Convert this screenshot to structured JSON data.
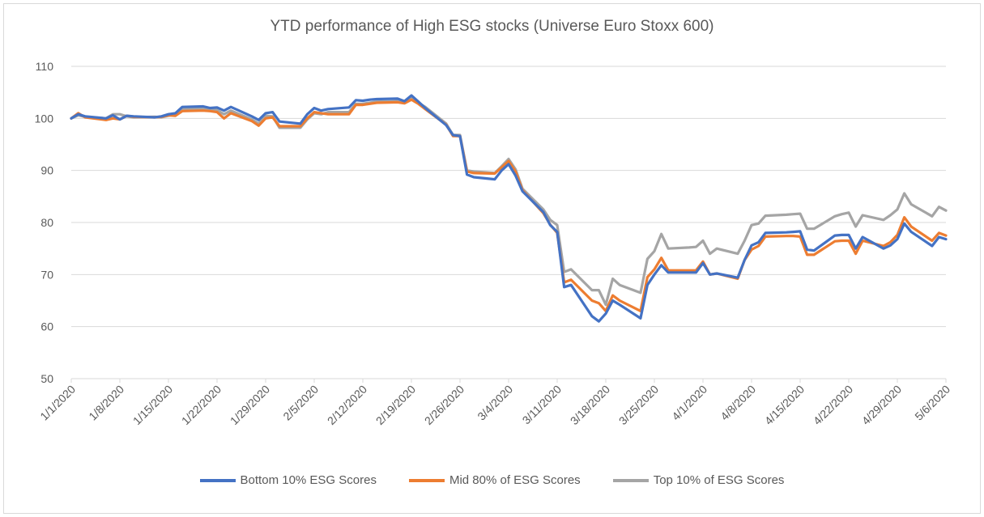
{
  "chart_data": {
    "type": "line",
    "title": "YTD performance of High ESG stocks (Universe Euro Stoxx 600)",
    "xlabel": "",
    "ylabel": "",
    "ylim": [
      50,
      110
    ],
    "yticks": [
      "50",
      "60",
      "70",
      "80",
      "90",
      "100",
      "110"
    ],
    "xticks": [
      "1/1/2020",
      "1/8/2020",
      "1/15/2020",
      "1/22/2020",
      "1/29/2020",
      "2/5/2020",
      "2/12/2020",
      "2/19/2020",
      "2/26/2020",
      "3/4/2020",
      "3/11/2020",
      "3/18/2020",
      "3/25/2020",
      "4/1/2020",
      "4/8/2020",
      "4/15/2020",
      "4/22/2020",
      "4/29/2020",
      "5/6/2020"
    ],
    "grid": true,
    "legend_position": "bottom",
    "x": [
      "1/1/2020",
      "1/2/2020",
      "1/3/2020",
      "1/6/2020",
      "1/7/2020",
      "1/8/2020",
      "1/9/2020",
      "1/10/2020",
      "1/13/2020",
      "1/14/2020",
      "1/15/2020",
      "1/16/2020",
      "1/17/2020",
      "1/20/2020",
      "1/21/2020",
      "1/22/2020",
      "1/23/2020",
      "1/24/2020",
      "1/27/2020",
      "1/28/2020",
      "1/29/2020",
      "1/30/2020",
      "1/31/2020",
      "2/3/2020",
      "2/4/2020",
      "2/5/2020",
      "2/6/2020",
      "2/7/2020",
      "2/10/2020",
      "2/11/2020",
      "2/12/2020",
      "2/13/2020",
      "2/14/2020",
      "2/17/2020",
      "2/18/2020",
      "2/19/2020",
      "2/20/2020",
      "2/21/2020",
      "2/24/2020",
      "2/25/2020",
      "2/26/2020",
      "2/27/2020",
      "2/28/2020",
      "3/2/2020",
      "3/3/2020",
      "3/4/2020",
      "3/5/2020",
      "3/6/2020",
      "3/9/2020",
      "3/10/2020",
      "3/11/2020",
      "3/12/2020",
      "3/13/2020",
      "3/16/2020",
      "3/17/2020",
      "3/18/2020",
      "3/19/2020",
      "3/20/2020",
      "3/23/2020",
      "3/24/2020",
      "3/25/2020",
      "3/26/2020",
      "3/27/2020",
      "3/30/2020",
      "3/31/2020",
      "4/1/2020",
      "4/2/2020",
      "4/3/2020",
      "4/6/2020",
      "4/7/2020",
      "4/8/2020",
      "4/9/2020",
      "4/10/2020",
      "4/13/2020",
      "4/14/2020",
      "4/15/2020",
      "4/16/2020",
      "4/17/2020",
      "4/20/2020",
      "4/21/2020",
      "4/22/2020",
      "4/23/2020",
      "4/24/2020",
      "4/27/2020",
      "4/28/2020",
      "4/29/2020",
      "4/30/2020",
      "5/1/2020",
      "5/4/2020",
      "5/5/2020",
      "5/6/2020"
    ],
    "series": [
      {
        "name": "Bottom 10% ESG Scores",
        "color": "#4472C4",
        "values": [
          100,
          100.8,
          100.4,
          100.0,
          100.6,
          99.8,
          100.5,
          100.4,
          100.2,
          100.4,
          100.8,
          101.0,
          102.2,
          102.3,
          102.0,
          102.1,
          101.5,
          102.2,
          100.4,
          99.7,
          101.0,
          101.2,
          99.4,
          99.0,
          100.8,
          102.0,
          101.5,
          101.8,
          102.1,
          103.5,
          103.4,
          103.6,
          103.7,
          103.8,
          103.3,
          104.4,
          103.2,
          102.0,
          98.7,
          96.8,
          96.6,
          89.2,
          88.7,
          88.3,
          90.0,
          91.2,
          89.0,
          86.0,
          82.0,
          79.5,
          78.2,
          67.6,
          68.0,
          62.0,
          61.0,
          62.5,
          65.0,
          64.2,
          61.6,
          68.0,
          70.0,
          71.8,
          70.4,
          70.4,
          70.4,
          72.2,
          70.0,
          70.2,
          69.4,
          72.8,
          75.6,
          76.2,
          78.0,
          78.1,
          78.2,
          78.3,
          74.8,
          74.6,
          77.5,
          77.6,
          77.6,
          75.0,
          77.2,
          75.0,
          75.6,
          76.8,
          79.8,
          78.2,
          75.5,
          77.2,
          76.8
        ]
      },
      {
        "name": "Mid 80% of ESG Scores",
        "color": "#ED7D31",
        "values": [
          100,
          101.0,
          100.2,
          99.7,
          100.0,
          99.8,
          100.5,
          100.3,
          100.2,
          100.3,
          100.6,
          100.5,
          101.4,
          101.5,
          101.4,
          101.2,
          100.0,
          101.0,
          99.5,
          98.6,
          100.0,
          100.2,
          98.5,
          98.5,
          100.0,
          101.2,
          101.0,
          100.8,
          100.8,
          102.6,
          102.6,
          102.8,
          103.0,
          103.1,
          102.9,
          103.6,
          102.8,
          101.8,
          98.8,
          96.6,
          96.6,
          89.8,
          89.5,
          89.4,
          90.6,
          91.8,
          89.8,
          86.2,
          81.8,
          79.6,
          78.0,
          68.5,
          69.0,
          65.0,
          64.5,
          63.0,
          66.0,
          65.0,
          63.0,
          69.5,
          71.0,
          73.2,
          70.8,
          70.8,
          70.8,
          72.5,
          70.0,
          70.2,
          69.2,
          72.8,
          74.8,
          75.5,
          77.3,
          77.4,
          77.4,
          77.3,
          73.8,
          73.8,
          76.4,
          76.5,
          76.5,
          74.0,
          76.5,
          75.5,
          76.2,
          77.6,
          81.0,
          79.2,
          76.5,
          78.0,
          77.5
        ]
      },
      {
        "name": "Top 10% of ESG Scores",
        "color": "#A5A5A5",
        "values": [
          100,
          100.6,
          100.3,
          100.0,
          100.8,
          100.8,
          100.4,
          100.2,
          100.3,
          100.2,
          100.5,
          100.8,
          101.8,
          101.9,
          101.8,
          101.6,
          100.8,
          101.5,
          99.8,
          99.0,
          100.5,
          100.4,
          98.2,
          98.2,
          99.8,
          101.0,
          100.8,
          101.2,
          101.2,
          102.8,
          102.8,
          103.0,
          103.2,
          103.3,
          103.0,
          104.0,
          103.0,
          102.2,
          99.0,
          96.8,
          96.8,
          90.0,
          89.8,
          89.5,
          90.8,
          92.2,
          90.2,
          86.5,
          82.5,
          80.5,
          79.5,
          70.5,
          71.0,
          67.0,
          67.0,
          64.2,
          69.2,
          68.0,
          66.5,
          73.0,
          74.5,
          77.8,
          75.0,
          75.2,
          75.3,
          76.5,
          74.0,
          75.0,
          74.0,
          76.5,
          79.5,
          79.8,
          81.3,
          81.5,
          81.6,
          81.7,
          78.8,
          78.8,
          81.2,
          81.6,
          81.9,
          79.2,
          81.4,
          80.5,
          81.4,
          82.5,
          85.6,
          83.5,
          81.2,
          83.0,
          82.3
        ]
      }
    ]
  }
}
